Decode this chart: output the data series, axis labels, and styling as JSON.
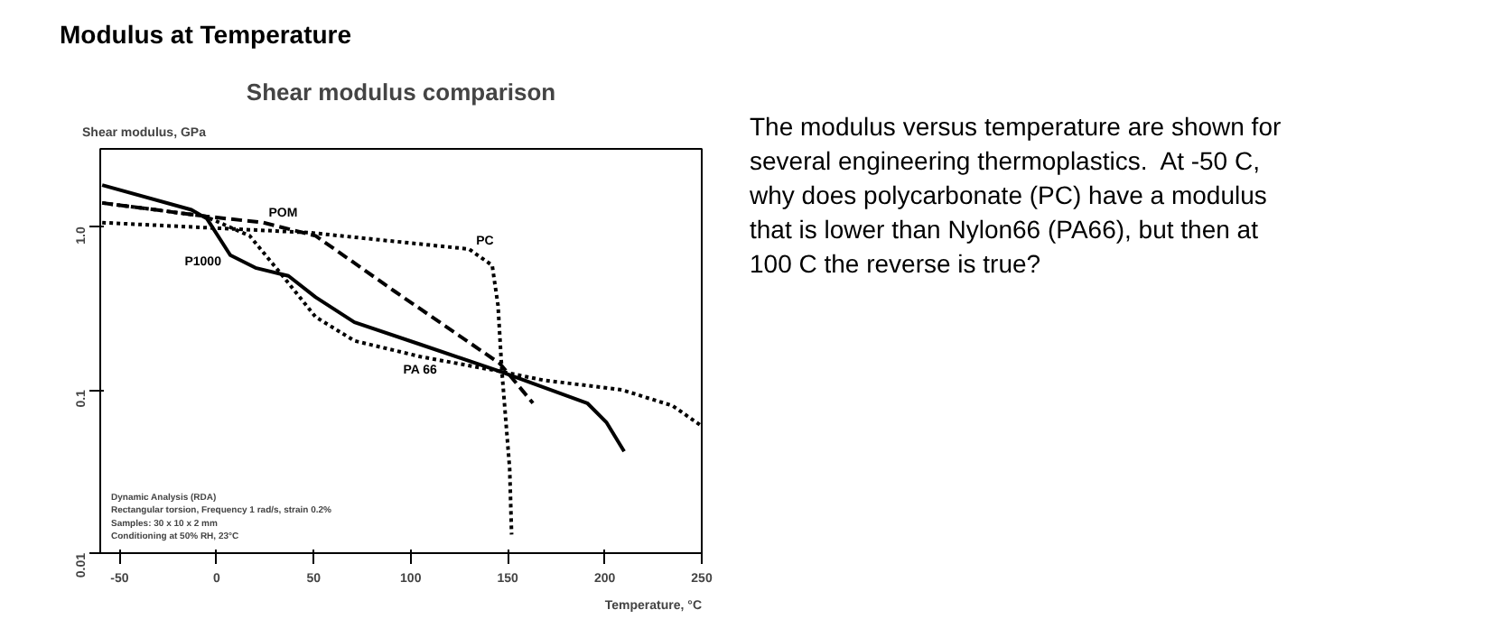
{
  "chart_data": {
    "type": "line",
    "title": "Modulus at Temperature",
    "subtitle": "Shear modulus comparison",
    "xlabel": "Temperature, °C",
    "ylabel": "Shear modulus, GPa",
    "log": "y",
    "grid": false,
    "marker": "none",
    "xlim": [
      -60,
      250
    ],
    "ylim": [
      0.01,
      3
    ],
    "xticks": [
      -50,
      0,
      50,
      100,
      150,
      200,
      250
    ],
    "yticks": [
      0.01,
      0.1,
      {
        "value": 1,
        "label": "1.0"
      }
    ],
    "series": [
      {
        "name": "P1000",
        "color": "#000000",
        "line_style": "solid",
        "x": [
          -59,
          -13,
          -5,
          7,
          20,
          37,
          51,
          71,
          105,
          146,
          191,
          201,
          210
        ],
        "values": [
          1.8,
          1.27,
          1.12,
          0.67,
          0.56,
          0.5,
          0.37,
          0.26,
          0.19,
          0.13,
          0.083,
          0.063,
          0.042
        ]
      },
      {
        "name": "POM",
        "color": "#000000",
        "line_style": "dashed",
        "x": [
          -59,
          -6,
          24,
          51,
          92,
          146,
          163
        ],
        "values": [
          1.4,
          1.16,
          1.06,
          0.88,
          0.4,
          0.145,
          0.083
        ]
      },
      {
        "name": "PA 66",
        "color": "#000000",
        "line_style": "dotted",
        "x": [
          -59,
          -6,
          17,
          34,
          51,
          71,
          105,
          146,
          168,
          209,
          235,
          250
        ],
        "values": [
          1.4,
          1.16,
          0.88,
          0.5,
          0.28,
          0.2,
          0.16,
          0.13,
          0.115,
          0.1,
          0.08,
          0.06
        ]
      },
      {
        "name": "PC",
        "color": "#000000",
        "line_style": "dotted",
        "x": [
          -59,
          48,
          130,
          142,
          145,
          147,
          151,
          152
        ],
        "values": [
          1.06,
          0.92,
          0.73,
          0.58,
          0.33,
          0.13,
          0.033,
          0.013
        ]
      }
    ],
    "annotations": [
      "Dynamic Analysis (RDA)\nRectangular torsion, Frequency 1 rad/s, strain 0.2%\nSamples: 30 x 10 x 2 mm\nConditioning at 50% RH, 23°C",
      "The modulus versus temperature are shown for\nseveral engineering thermoplastics.  At -50 C,\nwhy does polycarbonate (PC) have a modulus\nthat is lower than Nylon66 (PA66), but then at\n100 C the reverse is true?"
    ]
  }
}
